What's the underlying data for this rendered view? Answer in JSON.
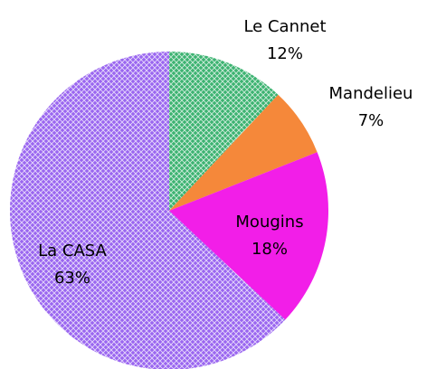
{
  "chart_data": {
    "type": "pie",
    "categories": [
      "Le Cannet",
      "Mandelieu",
      "Mougins",
      "La CASA"
    ],
    "values": [
      12,
      7,
      18,
      63
    ],
    "value_labels": [
      "12%",
      "7%",
      "18%",
      "63%"
    ],
    "colors": [
      "#3cb371",
      "#f5883a",
      "#f21ee8",
      "#9a66f0"
    ],
    "hatch": [
      true,
      false,
      false,
      true
    ]
  }
}
